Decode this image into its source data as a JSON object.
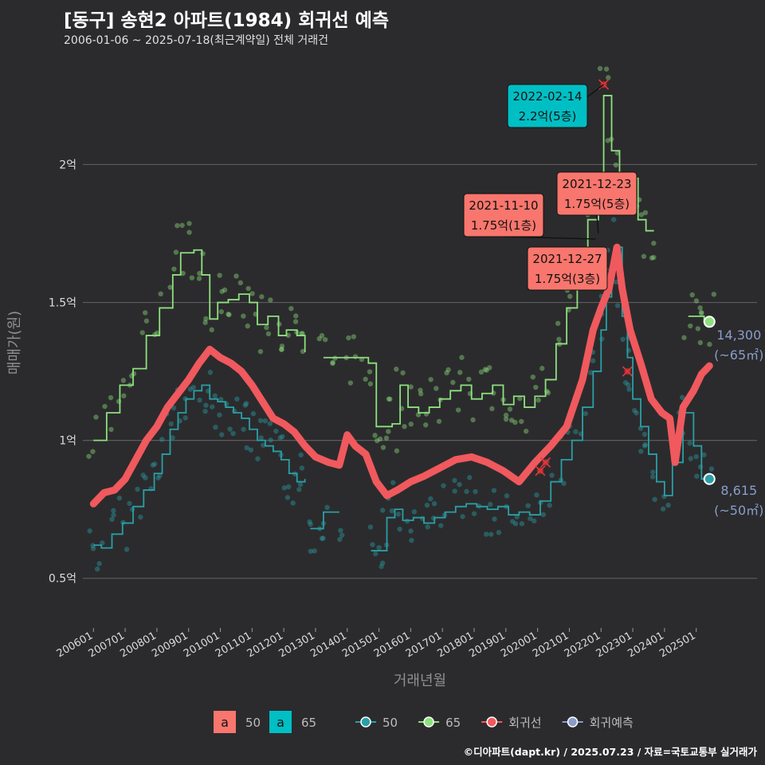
{
  "title": "[동구] 송현2 아파트(1984) 회귀선 예측",
  "subtitle": "2006-01-06 ~ 2025-07-18(최근계약일) 전체 거래건",
  "credit": "©디아파트(dapt.kr) / 2025.07.23 / 자료=국토교통부 실거래가",
  "colors": {
    "s50": "#2a9fa6",
    "s65": "#8ee07e",
    "reg": "#f0595d",
    "pred": "#8a9cc9",
    "lbl50": "#f8766d",
    "lbl65": "#00bfc4"
  },
  "chart_data": {
    "type": "line",
    "xlabel": "거래년월",
    "ylabel": "매매가(원)",
    "xlim": [
      "2005-09",
      "2026-12"
    ],
    "ylim": [
      0.32,
      2.4
    ],
    "y_unit": "억",
    "yticks": [
      {
        "v": 0.5,
        "label": "0.5억"
      },
      {
        "v": 1.0,
        "label": "1억"
      },
      {
        "v": 1.5,
        "label": "1.5억"
      },
      {
        "v": 2.0,
        "label": "2억"
      }
    ],
    "xticks": [
      "200601",
      "200701",
      "200801",
      "200901",
      "201001",
      "201101",
      "201201",
      "201301",
      "201401",
      "201501",
      "201601",
      "201701",
      "201801",
      "201901",
      "202001",
      "202101",
      "202201",
      "202301",
      "202401",
      "202501"
    ],
    "series": [
      {
        "name": "50",
        "color_key": "s50",
        "segments": [
          [
            [
              "2006-01",
              0.62
            ],
            [
              "2006-04",
              0.61
            ],
            [
              "2006-08",
              0.66
            ],
            [
              "2006-12",
              0.7
            ],
            [
              "2007-04",
              0.76
            ],
            [
              "2007-08",
              0.82
            ],
            [
              "2007-12",
              0.88
            ],
            [
              "2008-03",
              0.95
            ],
            [
              "2008-06",
              1.04
            ],
            [
              "2008-09",
              1.1
            ],
            [
              "2008-12",
              1.15
            ],
            [
              "2009-03",
              1.18
            ],
            [
              "2009-06",
              1.2
            ],
            [
              "2009-09",
              1.15
            ],
            [
              "2009-12",
              1.14
            ],
            [
              "2010-03",
              1.12
            ],
            [
              "2010-06",
              1.1
            ],
            [
              "2010-09",
              1.08
            ],
            [
              "2010-12",
              1.04
            ],
            [
              "2011-03",
              1.0
            ],
            [
              "2011-06",
              0.98
            ],
            [
              "2011-09",
              0.96
            ],
            [
              "2011-12",
              0.93
            ],
            [
              "2012-03",
              0.88
            ],
            [
              "2012-06",
              0.85
            ],
            [
              "2012-09",
              0.86
            ]
          ],
          [
            [
              "2012-11",
              0.68
            ],
            [
              "2013-02",
              0.68
            ],
            [
              "2013-04",
              0.74
            ],
            [
              "2013-10",
              0.74
            ]
          ],
          [
            [
              "2014-10",
              0.6
            ],
            [
              "2015-01",
              0.6
            ],
            [
              "2015-04",
              0.72
            ],
            [
              "2015-07",
              0.75
            ],
            [
              "2015-10",
              0.71
            ],
            [
              "2016-02",
              0.72
            ],
            [
              "2016-06",
              0.7
            ],
            [
              "2016-10",
              0.72
            ],
            [
              "2017-02",
              0.74
            ],
            [
              "2017-06",
              0.76
            ],
            [
              "2017-10",
              0.77
            ],
            [
              "2018-02",
              0.76
            ],
            [
              "2018-06",
              0.75
            ],
            [
              "2018-10",
              0.76
            ],
            [
              "2019-02",
              0.73
            ],
            [
              "2019-06",
              0.74
            ],
            [
              "2019-10",
              0.73
            ],
            [
              "2020-02",
              0.78
            ],
            [
              "2020-06",
              0.85
            ],
            [
              "2020-10",
              0.93
            ],
            [
              "2021-02",
              1.0
            ],
            [
              "2021-06",
              1.12
            ],
            [
              "2021-10",
              1.25
            ],
            [
              "2022-01",
              1.4
            ],
            [
              "2022-03",
              1.52
            ],
            [
              "2022-05",
              1.65
            ],
            [
              "2022-07",
              1.7
            ],
            [
              "2022-09",
              1.45
            ],
            [
              "2022-11",
              1.3
            ],
            [
              "2023-01",
              1.15
            ],
            [
              "2023-04",
              1.05
            ],
            [
              "2023-07",
              0.95
            ],
            [
              "2023-10",
              0.85
            ],
            [
              "2024-01",
              0.8
            ],
            [
              "2024-04",
              0.92
            ],
            [
              "2024-08",
              1.1
            ],
            [
              "2024-12",
              0.98
            ],
            [
              "2025-03",
              0.86
            ],
            [
              "2025-06",
              0.86
            ]
          ]
        ]
      },
      {
        "name": "65",
        "color_key": "s65",
        "segments": [
          [
            [
              "2006-01",
              1.0
            ],
            [
              "2006-06",
              1.1
            ],
            [
              "2006-11",
              1.2
            ],
            [
              "2007-04",
              1.26
            ],
            [
              "2007-09",
              1.38
            ],
            [
              "2008-02",
              1.48
            ],
            [
              "2008-07",
              1.6
            ],
            [
              "2008-10",
              1.68
            ],
            [
              "2009-03",
              1.69
            ],
            [
              "2009-06",
              1.6
            ],
            [
              "2009-09",
              1.44
            ],
            [
              "2009-12",
              1.5
            ],
            [
              "2010-04",
              1.51
            ],
            [
              "2010-08",
              1.53
            ],
            [
              "2010-12",
              1.5
            ],
            [
              "2011-03",
              1.42
            ],
            [
              "2011-07",
              1.45
            ],
            [
              "2011-11",
              1.38
            ],
            [
              "2012-02",
              1.4
            ],
            [
              "2012-06",
              1.38
            ],
            [
              "2012-09",
              1.32
            ]
          ],
          [
            [
              "2013-04",
              1.3
            ],
            [
              "2013-09",
              1.3
            ],
            [
              "2014-01",
              1.3
            ],
            [
              "2014-05",
              1.3
            ],
            [
              "2014-09",
              1.28
            ],
            [
              "2014-12",
              1.05
            ],
            [
              "2015-03",
              1.05
            ],
            [
              "2015-06",
              1.06
            ],
            [
              "2015-09",
              1.2
            ],
            [
              "2015-12",
              1.12
            ],
            [
              "2016-04",
              1.1
            ],
            [
              "2016-08",
              1.12
            ],
            [
              "2016-12",
              1.15
            ],
            [
              "2017-04",
              1.18
            ],
            [
              "2017-08",
              1.2
            ],
            [
              "2017-12",
              1.15
            ],
            [
              "2018-04",
              1.17
            ],
            [
              "2018-08",
              1.2
            ],
            [
              "2018-12",
              1.13
            ],
            [
              "2019-04",
              1.16
            ],
            [
              "2019-08",
              1.12
            ],
            [
              "2019-12",
              1.16
            ],
            [
              "2020-04",
              1.22
            ],
            [
              "2020-08",
              1.35
            ],
            [
              "2020-12",
              1.48
            ],
            [
              "2021-04",
              1.65
            ],
            [
              "2021-08",
              1.8
            ],
            [
              "2021-12",
              1.95
            ],
            [
              "2022-02",
              2.25
            ],
            [
              "2022-05",
              2.05
            ],
            [
              "2022-08",
              1.95
            ],
            [
              "2022-11",
              1.95
            ],
            [
              "2023-03",
              1.8
            ],
            [
              "2023-06",
              1.76
            ],
            [
              "2023-09",
              1.76
            ]
          ],
          [
            [
              "2024-10",
              1.45
            ],
            [
              "2025-01",
              1.45
            ],
            [
              "2025-04",
              1.43
            ],
            [
              "2025-06",
              1.43
            ]
          ]
        ]
      },
      {
        "name": "회귀선",
        "color_key": "reg",
        "points": [
          [
            "2006-01",
            0.77
          ],
          [
            "2006-05",
            0.81
          ],
          [
            "2006-09",
            0.82
          ],
          [
            "2007-01",
            0.86
          ],
          [
            "2007-05",
            0.93
          ],
          [
            "2007-09",
            1.0
          ],
          [
            "2008-01",
            1.05
          ],
          [
            "2008-05",
            1.12
          ],
          [
            "2008-09",
            1.17
          ],
          [
            "2009-01",
            1.22
          ],
          [
            "2009-05",
            1.28
          ],
          [
            "2009-09",
            1.33
          ],
          [
            "2010-01",
            1.3
          ],
          [
            "2010-05",
            1.28
          ],
          [
            "2010-09",
            1.25
          ],
          [
            "2011-01",
            1.2
          ],
          [
            "2011-05",
            1.14
          ],
          [
            "2011-09",
            1.08
          ],
          [
            "2012-01",
            1.06
          ],
          [
            "2012-05",
            1.03
          ],
          [
            "2012-09",
            0.98
          ],
          [
            "2013-01",
            0.94
          ],
          [
            "2013-06",
            0.92
          ],
          [
            "2013-10",
            0.91
          ],
          [
            "2014-01",
            1.02
          ],
          [
            "2014-04",
            0.98
          ],
          [
            "2014-08",
            0.95
          ],
          [
            "2014-12",
            0.85
          ],
          [
            "2015-04",
            0.8
          ],
          [
            "2015-08",
            0.82
          ],
          [
            "2016-01",
            0.85
          ],
          [
            "2016-06",
            0.87
          ],
          [
            "2016-12",
            0.9
          ],
          [
            "2017-06",
            0.93
          ],
          [
            "2017-12",
            0.94
          ],
          [
            "2018-06",
            0.92
          ],
          [
            "2018-12",
            0.89
          ],
          [
            "2019-06",
            0.85
          ],
          [
            "2019-12",
            0.92
          ],
          [
            "2020-06",
            0.98
          ],
          [
            "2020-12",
            1.05
          ],
          [
            "2021-06",
            1.22
          ],
          [
            "2021-10",
            1.4
          ],
          [
            "2022-01",
            1.48
          ],
          [
            "2022-04",
            1.55
          ],
          [
            "2022-07",
            1.7
          ],
          [
            "2022-09",
            1.55
          ],
          [
            "2022-12",
            1.4
          ],
          [
            "2023-04",
            1.28
          ],
          [
            "2023-08",
            1.15
          ],
          [
            "2023-12",
            1.1
          ],
          [
            "2024-03",
            1.08
          ],
          [
            "2024-05",
            0.92
          ],
          [
            "2024-08",
            1.12
          ],
          [
            "2024-12",
            1.18
          ],
          [
            "2025-03",
            1.24
          ],
          [
            "2025-06",
            1.27
          ]
        ]
      }
    ],
    "legend": {
      "fill_labels": [
        {
          "key": "a",
          "text": "50",
          "color_key": "lbl50"
        },
        {
          "key": "a",
          "text": "65",
          "color_key": "lbl65"
        }
      ],
      "line_labels": [
        {
          "text": "50",
          "color_key": "s50"
        },
        {
          "text": "65",
          "color_key": "s65"
        },
        {
          "text": "회귀선",
          "color_key": "reg"
        },
        {
          "text": "회귀예측",
          "color_key": "pred"
        }
      ]
    },
    "annotations": [
      {
        "date": "2022-02-14",
        "price": "2.2억(5층)",
        "box_color": "lbl65",
        "at": [
          "2022-02",
          2.29
        ]
      },
      {
        "date": "2021-12-23",
        "price": "1.75억(5층)",
        "box_color": "lbl50",
        "at": [
          "2021-12",
          1.75
        ]
      },
      {
        "date": "2021-11-10",
        "price": "1.75억(1층)",
        "box_color": "lbl50",
        "at": [
          "2021-11",
          1.73
        ]
      },
      {
        "date": "2021-12-27",
        "price": "1.75억(3층)",
        "box_color": "lbl50",
        "at": [
          "2021-12",
          1.7
        ]
      }
    ],
    "predictions": [
      {
        "value": "14,300",
        "area": "(~65㎡)",
        "at": [
          "2025-06",
          1.43
        ],
        "color_key": "s65"
      },
      {
        "value": "8,615",
        "area": "(~50㎡)",
        "at": [
          "2025-06",
          0.86
        ],
        "color_key": "s50"
      }
    ],
    "crosses": [
      [
        "2022-02",
        2.29
      ],
      [
        "2022-11",
        1.25
      ],
      [
        "2020-04",
        0.92
      ],
      [
        "2020-02",
        0.89
      ]
    ]
  }
}
